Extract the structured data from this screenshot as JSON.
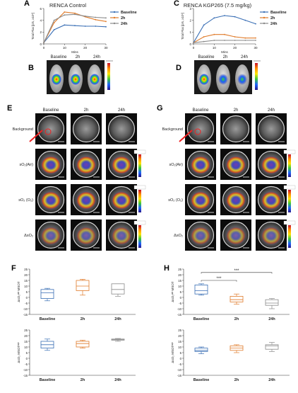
{
  "panels": {
    "A": {
      "letter": "A",
      "title": "RENCA  Control",
      "ylabel": "Total Flux [p/s, x10⁹]",
      "xlabel": "Mins",
      "legend": [
        "Baseline",
        "2h",
        "24h"
      ]
    },
    "B": {
      "letter": "B",
      "labels": [
        "Baseline",
        "2h",
        "24h"
      ]
    },
    "C": {
      "letter": "C",
      "title": "RENCA KGP265 (7.5 mg/kg)",
      "ylabel": "Total Flux [p/s, x10⁹]",
      "xlabel": "Mins",
      "legend": [
        "Baseline",
        "2h",
        "24h"
      ]
    },
    "D": {
      "letter": "D",
      "labels": [
        "Baseline",
        "2h",
        "24h"
      ]
    },
    "E": {
      "letter": "E",
      "cols": [
        "Baseline",
        "2h",
        "24h"
      ],
      "rows": [
        "Background",
        "sO₂(Air)",
        "sO₂ (O₂)",
        "ΔsO₂"
      ]
    },
    "G": {
      "letter": "G",
      "cols": [
        "Baseline",
        "2h",
        "24h"
      ],
      "rows": [
        "Background",
        "sO₂(Air)",
        "sO₂ (O₂)",
        "ΔsO₂"
      ]
    },
    "F": {
      "letter": "F",
      "xlabels": [
        "Baseline",
        "2h",
        "24h"
      ]
    },
    "H": {
      "letter": "H",
      "xlabels": [
        "Baseline",
        "2h",
        "24h"
      ],
      "sig1": "***",
      "sig2": "***"
    }
  },
  "chart_data": [
    {
      "panel": "A",
      "type": "line",
      "x": [
        0,
        5,
        10,
        15,
        20,
        25,
        30
      ],
      "xlim": [
        0,
        30
      ],
      "ylim": [
        0,
        6
      ],
      "yticks": [
        0,
        2,
        4,
        6
      ],
      "xticks": [
        0,
        10,
        20,
        30
      ],
      "series": [
        {
          "name": "Baseline",
          "color": "#3a6fb5",
          "values": [
            0.2,
            2.4,
            3.2,
            3.1,
            3.0,
            3.0,
            2.9
          ]
        },
        {
          "name": "2h",
          "color": "#e07b2a",
          "values": [
            0.2,
            3.6,
            5.4,
            5.2,
            4.6,
            4.1,
            3.8
          ]
        },
        {
          "name": "24h",
          "color": "#8a8a8a",
          "values": [
            0.2,
            4.0,
            4.9,
            5.0,
            4.7,
            4.5,
            4.4
          ]
        }
      ]
    },
    {
      "panel": "C",
      "type": "line",
      "x": [
        0,
        5,
        10,
        15,
        20,
        25,
        30
      ],
      "xlim": [
        0,
        30
      ],
      "ylim": [
        0,
        3
      ],
      "yticks": [
        0,
        1,
        2,
        3
      ],
      "xticks": [
        0,
        10,
        20,
        30
      ],
      "series": [
        {
          "name": "Baseline",
          "color": "#3a6fb5",
          "values": [
            0.1,
            1.6,
            2.2,
            2.4,
            2.3,
            2.0,
            1.7
          ]
        },
        {
          "name": "2h",
          "color": "#e07b2a",
          "values": [
            0.1,
            0.6,
            0.8,
            0.8,
            0.6,
            0.5,
            0.5
          ]
        },
        {
          "name": "24h",
          "color": "#8a8a8a",
          "values": [
            0.1,
            0.2,
            0.3,
            0.3,
            0.3,
            0.3,
            0.3
          ]
        }
      ]
    },
    {
      "panel": "F-top",
      "type": "box",
      "ylabel": "ΔsO₂ᵃᵖᵗ MSOT",
      "ylim": [
        -15,
        25
      ],
      "yticks": [
        -15,
        -10,
        -5,
        0,
        5,
        10,
        15,
        20,
        25
      ],
      "categories": [
        "Baseline",
        "2h",
        "24h"
      ],
      "boxes": [
        {
          "min": -3,
          "q1": -1,
          "median": 4,
          "q3": 7,
          "max": 8,
          "color": "#3a6fb5"
        },
        {
          "min": 2,
          "q1": 6,
          "median": 10,
          "q3": 15,
          "max": 16,
          "color": "#e07b2a"
        },
        {
          "min": 1,
          "q1": 3,
          "median": 7,
          "q3": 12,
          "max": 12,
          "color": "#8a8a8a"
        }
      ]
    },
    {
      "panel": "F-bottom",
      "type": "box",
      "ylabel": "ΔsO₂ MSOTᵃᵖᵗ",
      "ylim": [
        -15,
        25
      ],
      "yticks": [
        -15,
        -10,
        -5,
        0,
        5,
        10,
        15,
        20,
        25
      ],
      "categories": [
        "Baseline",
        "2h",
        "24h"
      ],
      "boxes": [
        {
          "min": 7,
          "q1": 9,
          "median": 12,
          "q3": 15,
          "max": 17,
          "color": "#3a6fb5"
        },
        {
          "min": 9,
          "q1": 10,
          "median": 13,
          "q3": 15,
          "max": 16,
          "color": "#e07b2a"
        },
        {
          "min": 15,
          "q1": 16,
          "median": 16.5,
          "q3": 17,
          "max": 17.5,
          "color": "#8a8a8a"
        }
      ]
    },
    {
      "panel": "H-top",
      "type": "box",
      "ylabel": "ΔsO₂ᵃᵖᵗ MSOT",
      "ylim": [
        -15,
        25
      ],
      "yticks": [
        -15,
        -10,
        -5,
        0,
        5,
        10,
        15,
        20,
        25
      ],
      "categories": [
        "Baseline",
        "2h",
        "24h"
      ],
      "boxes": [
        {
          "min": 2,
          "q1": 3,
          "median": 6,
          "q3": 11,
          "max": 12,
          "color": "#3a6fb5"
        },
        {
          "min": -6,
          "q1": -4,
          "median": -2,
          "q3": 1,
          "max": 3,
          "color": "#e07b2a"
        },
        {
          "min": -10,
          "q1": -7,
          "median": -5,
          "q3": -2,
          "max": -1,
          "color": "#8a8a8a"
        }
      ]
    },
    {
      "panel": "H-bottom",
      "type": "box",
      "ylabel": "ΔsO₂ MSOTᵃᵖᵗ",
      "ylim": [
        -15,
        25
      ],
      "yticks": [
        -15,
        -10,
        -5,
        0,
        5,
        10,
        15,
        20,
        25
      ],
      "categories": [
        "Baseline",
        "2h",
        "24h"
      ],
      "boxes": [
        {
          "min": 4,
          "q1": 6,
          "median": 7,
          "q3": 9,
          "max": 10,
          "color": "#3a6fb5"
        },
        {
          "min": 5,
          "q1": 7,
          "median": 9,
          "q3": 11,
          "max": 12,
          "color": "#e07b2a"
        },
        {
          "min": 6,
          "q1": 8,
          "median": 11,
          "q3": 12,
          "max": 14,
          "color": "#8a8a8a"
        }
      ]
    }
  ]
}
